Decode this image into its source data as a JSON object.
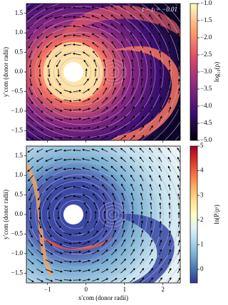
{
  "chart_data": [
    {
      "type": "heatmap",
      "annotation": "t − tₗ = −0.01",
      "ylabel": "y′com (donor radii)",
      "xlim": [
        -1.55,
        2.45
      ],
      "ylim": [
        -1.75,
        1.75
      ],
      "yticks": [
        {
          "value": 1.5,
          "label": "1.5"
        },
        {
          "value": 1.0,
          "label": "1.0"
        },
        {
          "value": 0.5,
          "label": "0.5"
        },
        {
          "value": 0.0,
          "label": "0.0"
        },
        {
          "value": -0.5,
          "label": "−0.5"
        },
        {
          "value": -1.0,
          "label": "−1.0"
        },
        {
          "value": -1.5,
          "label": "−1.5"
        }
      ],
      "colorbar_label": "log₁₀(ρ)",
      "colormap": "magma",
      "clim": [
        -5.0,
        -1.0
      ],
      "cticks": [
        {
          "value": -1.0,
          "label": "−1.0"
        },
        {
          "value": -1.5,
          "label": "−1.5"
        },
        {
          "value": -2.0,
          "label": "−2.0"
        },
        {
          "value": -2.5,
          "label": "−2.5"
        },
        {
          "value": -3.0,
          "label": "−3.0"
        },
        {
          "value": -3.5,
          "label": "−3.5"
        },
        {
          "value": -4.0,
          "label": "−4.0"
        },
        {
          "value": -4.5,
          "label": "−4.5"
        },
        {
          "value": -5.0,
          "label": "−5.0"
        }
      ]
    },
    {
      "type": "heatmap",
      "xlabel": "x′com (donor radii)",
      "ylabel": "y′com (donor radii)",
      "xlim": [
        -1.55,
        2.45
      ],
      "ylim": [
        -1.75,
        1.75
      ],
      "xticks": [
        {
          "value": -1,
          "label": "−1"
        },
        0,
        1,
        2
      ],
      "yticks": [
        {
          "value": 1.5,
          "label": "1.5"
        },
        {
          "value": 1.0,
          "label": "1.0"
        },
        {
          "value": 0.5,
          "label": "0.5"
        },
        {
          "value": 0.0,
          "label": "0.0"
        },
        {
          "value": -0.5,
          "label": "−0.5"
        },
        {
          "value": -1.0,
          "label": "−1.0"
        },
        {
          "value": -1.5,
          "label": "−1.5"
        }
      ],
      "colorbar_label": "ln(P/ρᵞ)",
      "colormap": "RdYlBu_r",
      "clim": [
        -0.55,
        5.0
      ],
      "cticks": [
        5,
        4,
        3,
        2,
        1,
        0
      ]
    }
  ]
}
